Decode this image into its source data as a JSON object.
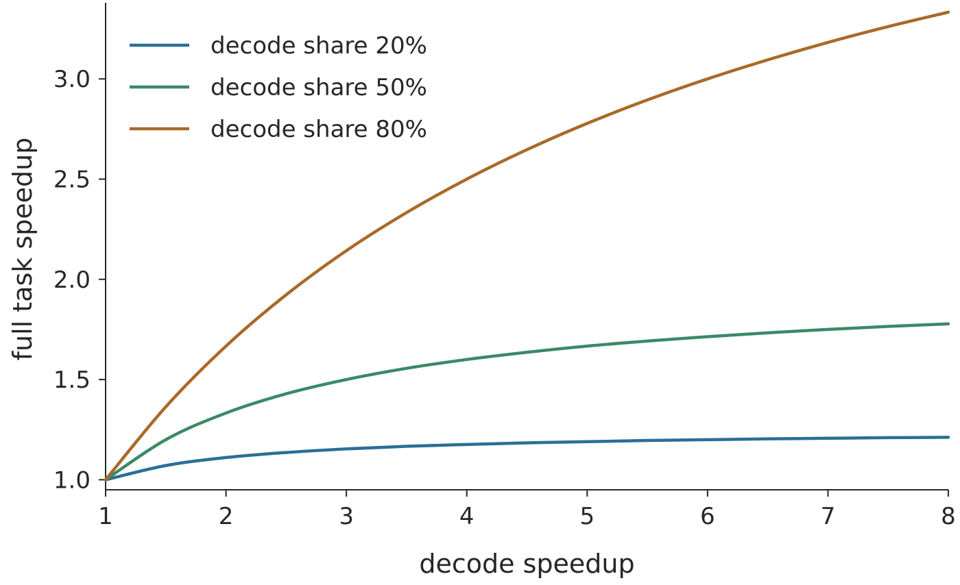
{
  "chart_data": {
    "type": "line",
    "title": "",
    "xlabel": "decode speedup",
    "ylabel": "full task speedup",
    "xlim": [
      1,
      8
    ],
    "ylim": [
      0.95,
      3.38
    ],
    "xticks": [
      1,
      2,
      3,
      4,
      5,
      6,
      7,
      8
    ],
    "xtick_labels": [
      "1",
      "2",
      "3",
      "4",
      "5",
      "6",
      "7",
      "8"
    ],
    "yticks": [
      1.0,
      1.5,
      2.0,
      2.5,
      3.0
    ],
    "ytick_labels": [
      "1.0",
      "1.5",
      "2.0",
      "2.5",
      "3.0"
    ],
    "grid": false,
    "legend_position": "top-left",
    "x": [
      1,
      1.5,
      2,
      2.5,
      3,
      3.5,
      4,
      4.5,
      5,
      5.5,
      6,
      6.5,
      7,
      7.5,
      8
    ],
    "series": [
      {
        "name": "decode share 20%",
        "color": "#2a6f97",
        "values": [
          1.0,
          1.071,
          1.111,
          1.136,
          1.154,
          1.167,
          1.176,
          1.184,
          1.19,
          1.196,
          1.2,
          1.204,
          1.207,
          1.21,
          1.212
        ]
      },
      {
        "name": "decode share 50%",
        "color": "#3a8a66",
        "values": [
          1.0,
          1.2,
          1.333,
          1.429,
          1.5,
          1.556,
          1.6,
          1.636,
          1.667,
          1.692,
          1.714,
          1.733,
          1.75,
          1.765,
          1.778
        ]
      },
      {
        "name": "decode share 80%",
        "color": "#a86a2a",
        "values": [
          1.0,
          1.364,
          1.667,
          1.923,
          2.143,
          2.333,
          2.5,
          2.647,
          2.778,
          2.895,
          3.0,
          3.095,
          3.182,
          3.261,
          3.333
        ]
      }
    ]
  }
}
